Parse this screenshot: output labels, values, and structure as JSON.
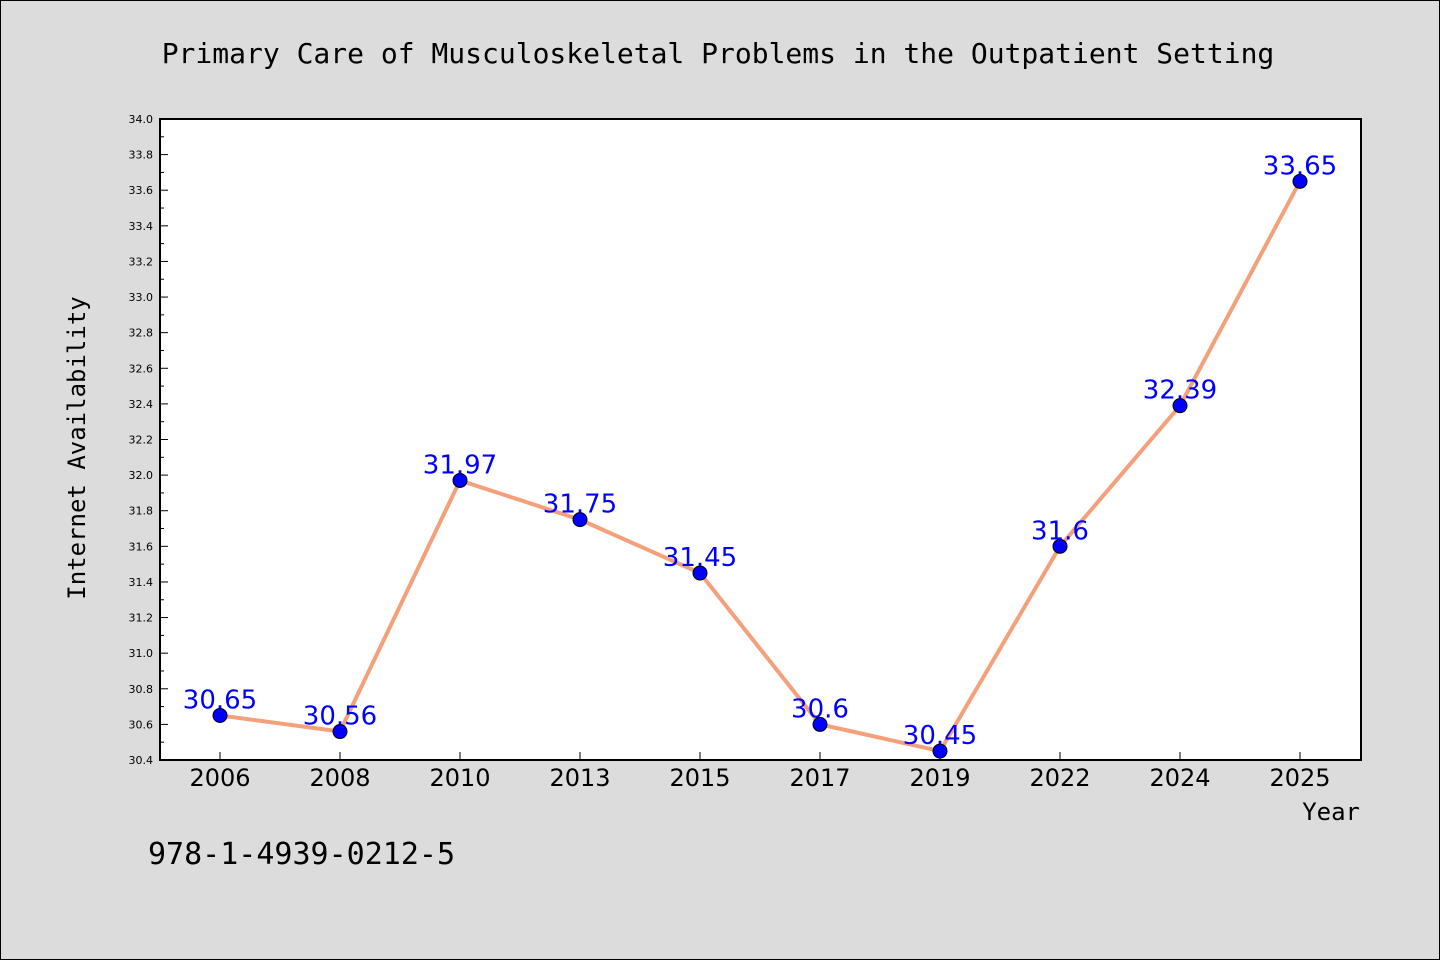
{
  "isbn": "978-1-4939-0212-5",
  "colors": {
    "line": "#f4a07a",
    "marker": "#0000ff",
    "label": "#0000ff",
    "background": "#dcdcdc",
    "plot_bg": "#ffffff"
  },
  "chart_data": {
    "type": "line",
    "title": "Primary Care of Musculoskeletal Problems in the Outpatient Setting",
    "xlabel": "Year",
    "ylabel": "Internet Availability",
    "categories": [
      "2006",
      "2008",
      "2010",
      "2013",
      "2015",
      "2017",
      "2019",
      "2022",
      "2024",
      "2025"
    ],
    "values": [
      30.65,
      30.56,
      31.97,
      31.75,
      31.45,
      30.6,
      30.45,
      31.6,
      32.39,
      33.65
    ],
    "data_labels": [
      "30.65",
      "30.56",
      "31.97",
      "31.75",
      "31.45",
      "30.6",
      "30.45",
      "31.6",
      "32.39",
      "33.65"
    ],
    "ylim": [
      30.4,
      34.0
    ],
    "yticks": [
      "30.4",
      "30.6",
      "30.8",
      "31.0",
      "31.2",
      "31.4",
      "31.6",
      "31.8",
      "32.0",
      "32.2",
      "32.4",
      "32.6",
      "32.8",
      "33.0",
      "33.2",
      "33.4",
      "33.6",
      "33.8",
      "34.0"
    ],
    "grid": false,
    "legend": "none"
  }
}
